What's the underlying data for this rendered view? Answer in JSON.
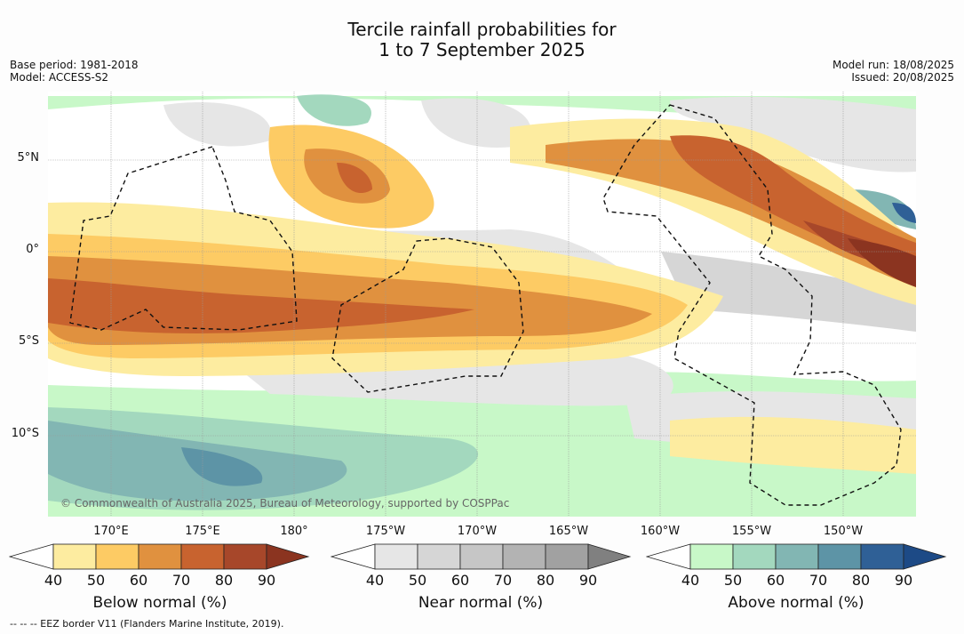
{
  "title": {
    "line1": "Tercile rainfall probabilities for",
    "line2": "1 to 7 September 2025"
  },
  "meta_left": {
    "base_period": "Base period: 1981-2018",
    "model": "Model: ACCESS-S2"
  },
  "meta_right": {
    "model_run": "Model run: 18/08/2025",
    "issued": "Issued: 20/08/2025"
  },
  "map": {
    "lat_labels": [
      "5°N",
      "0°",
      "5°S",
      "10°S"
    ],
    "lon_labels": [
      "170°E",
      "175°E",
      "180°",
      "175°W",
      "170°W",
      "165°W",
      "160°W",
      "155°W",
      "150°W"
    ],
    "copyright": "© Commonwealth of Australia 2025, Bureau of Meteorology, supported by COSPPac"
  },
  "colorbars": [
    {
      "label": "Below normal (%)",
      "ticks": [
        "40",
        "50",
        "60",
        "70",
        "80",
        "90"
      ],
      "colors": [
        "#ffffff",
        "#fdeca0",
        "#fdcb64",
        "#e0913f",
        "#c8632f",
        "#a7472a",
        "#8b3420"
      ]
    },
    {
      "label": "Near normal (%)",
      "ticks": [
        "40",
        "50",
        "60",
        "70",
        "80",
        "90"
      ],
      "colors": [
        "#ffffff",
        "#e6e6e6",
        "#d6d6d6",
        "#c6c6c6",
        "#b3b3b3",
        "#a1a1a1",
        "#808080"
      ]
    },
    {
      "label": "Above normal (%)",
      "ticks": [
        "40",
        "50",
        "60",
        "70",
        "80",
        "90"
      ],
      "colors": [
        "#ffffff",
        "#c8f8c8",
        "#a3d8be",
        "#82b6b3",
        "#5d94a6",
        "#2f6096",
        "#1d4a86"
      ]
    }
  ],
  "footnote": "--  --  -- EEZ border V11 (Flanders Marine Institute, 2019)."
}
